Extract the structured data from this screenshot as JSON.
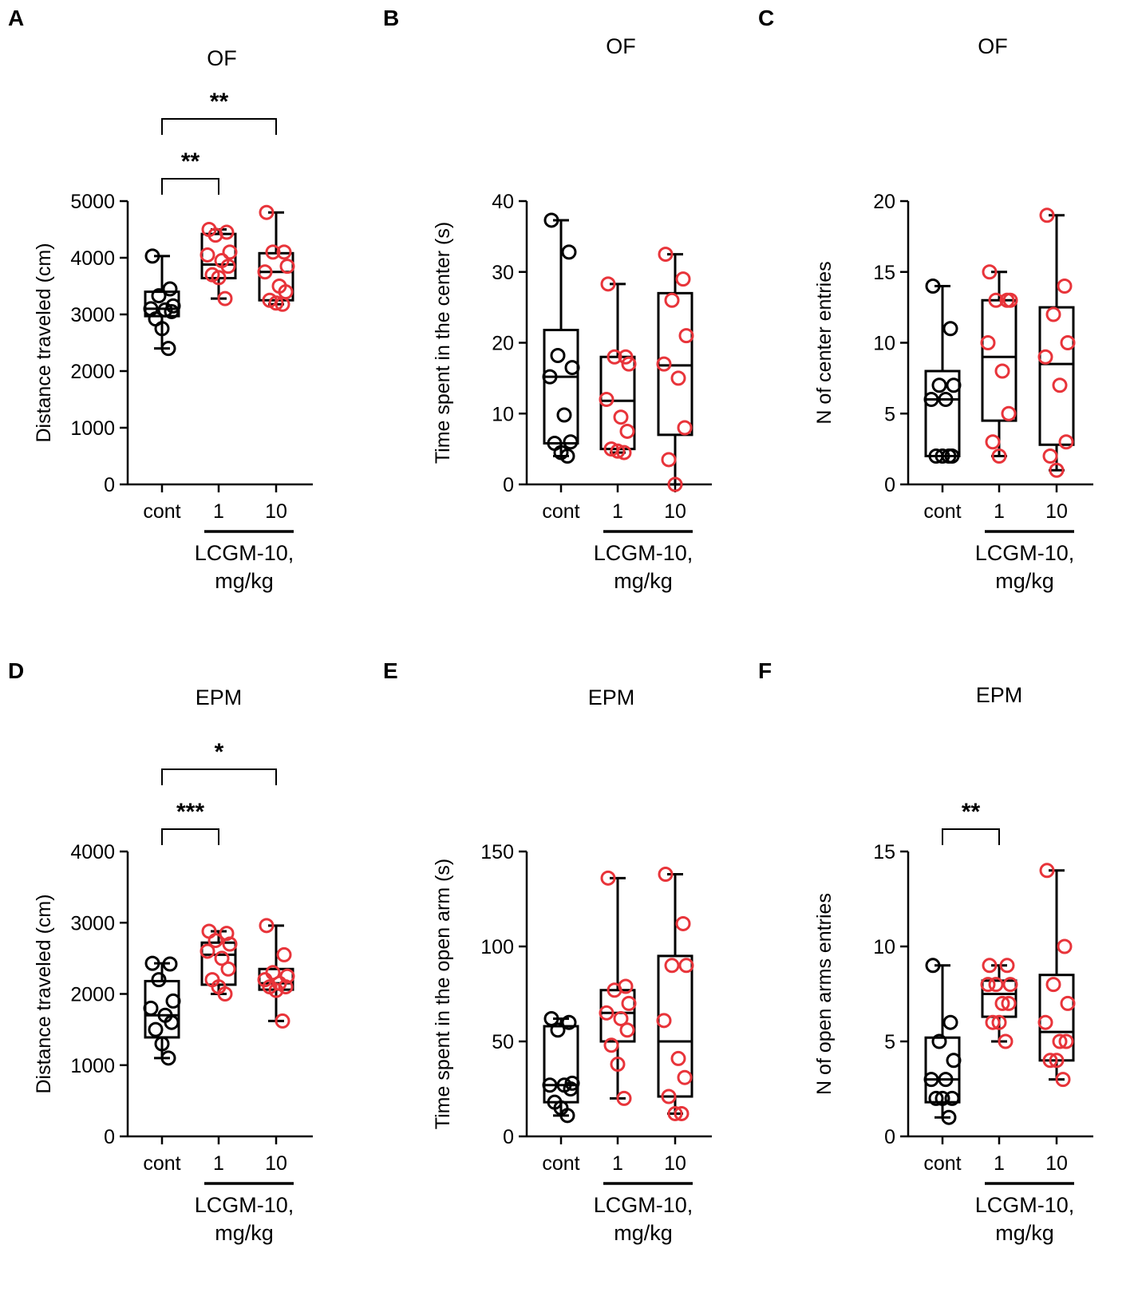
{
  "colors": {
    "control": "#000000",
    "treated": "#e8343a",
    "axis": "#000000"
  },
  "group_label_line1": "LCGM-10,",
  "group_label_line2": "mg/kg",
  "chart_data": [
    {
      "panel": "A",
      "title": "OF",
      "type": "box",
      "ylabel": "Distance traveled (cm)",
      "ylim": [
        0,
        5000
      ],
      "yticks": [
        "0",
        "1000",
        "2000",
        "3000",
        "4000",
        "5000"
      ],
      "categories": [
        "cont",
        "1",
        "10"
      ],
      "boxes": [
        {
          "min": 2400,
          "q1": 2970,
          "median": 3100,
          "q3": 3400,
          "max": 4030,
          "points": [
            4030,
            3450,
            3330,
            3150,
            3100,
            3080,
            3050,
            2920,
            2750,
            2400
          ]
        },
        {
          "min": 3280,
          "q1": 3640,
          "median": 3880,
          "q3": 4420,
          "max": 4500,
          "points": [
            4500,
            4450,
            4400,
            4100,
            4050,
            3950,
            3850,
            3700,
            3650,
            3280
          ]
        },
        {
          "min": 3180,
          "q1": 3250,
          "median": 3750,
          "q3": 4080,
          "max": 4800,
          "points": [
            4800,
            4100,
            4100,
            3850,
            3750,
            3500,
            3400,
            3250,
            3200,
            3180
          ]
        }
      ],
      "significance": [
        {
          "from": 0,
          "to": 1,
          "label": "**"
        },
        {
          "from": 0,
          "to": 2,
          "label": "**"
        }
      ]
    },
    {
      "panel": "B",
      "title": "OF",
      "type": "box",
      "ylabel": "Time spent in the center (s)",
      "ylim": [
        0,
        40
      ],
      "yticks": [
        "0",
        "10",
        "20",
        "30",
        "40"
      ],
      "categories": [
        "cont",
        "1",
        "10"
      ],
      "boxes": [
        {
          "min": 4,
          "q1": 5.8,
          "median": 15.2,
          "q3": 21.8,
          "max": 37.3,
          "points": [
            37.3,
            32.8,
            18.2,
            16.5,
            15.2,
            9.8,
            6,
            5.8,
            4.5,
            4
          ]
        },
        {
          "min": 4.5,
          "q1": 5,
          "median": 11.8,
          "q3": 18,
          "max": 28.3,
          "points": [
            28.3,
            18,
            18,
            17,
            12,
            9.5,
            7.5,
            5,
            4.7,
            4.5
          ]
        },
        {
          "min": 0,
          "q1": 7,
          "median": 16.8,
          "q3": 27,
          "max": 32.5,
          "points": [
            32.5,
            29,
            26,
            21,
            17,
            15,
            8,
            3.5,
            0
          ]
        }
      ],
      "significance": []
    },
    {
      "panel": "C",
      "title": "OF",
      "type": "box",
      "ylabel": "N of center entries",
      "ylim": [
        0,
        20
      ],
      "yticks": [
        "0",
        "5",
        "10",
        "15",
        "20"
      ],
      "categories": [
        "cont",
        "1",
        "10"
      ],
      "boxes": [
        {
          "min": 2,
          "q1": 2,
          "median": 6,
          "q3": 8,
          "max": 14,
          "points": [
            14,
            11,
            7,
            7,
            6,
            6,
            2,
            2,
            2,
            2
          ]
        },
        {
          "min": 2,
          "q1": 4.5,
          "median": 9,
          "q3": 13,
          "max": 15,
          "points": [
            15,
            13,
            13,
            13,
            10,
            8,
            5,
            3,
            2
          ]
        },
        {
          "min": 1,
          "q1": 2.8,
          "median": 8.5,
          "q3": 12.5,
          "max": 19,
          "points": [
            19,
            14,
            12,
            10,
            9,
            7,
            3,
            2,
            1
          ]
        }
      ],
      "significance": []
    },
    {
      "panel": "D",
      "title": "EPM",
      "type": "box",
      "ylabel": "Distance traveled (cm)",
      "ylim": [
        0,
        4000
      ],
      "yticks": [
        "0",
        "1000",
        "2000",
        "3000",
        "4000"
      ],
      "categories": [
        "cont",
        "1",
        "10"
      ],
      "boxes": [
        {
          "min": 1100,
          "q1": 1390,
          "median": 1700,
          "q3": 2180,
          "max": 2430,
          "points": [
            2430,
            2420,
            2200,
            1900,
            1800,
            1700,
            1600,
            1500,
            1300,
            1100
          ]
        },
        {
          "min": 2000,
          "q1": 2130,
          "median": 2550,
          "q3": 2720,
          "max": 2880,
          "points": [
            2880,
            2850,
            2750,
            2700,
            2600,
            2500,
            2350,
            2200,
            2100,
            2000
          ]
        },
        {
          "min": 1620,
          "q1": 2060,
          "median": 2150,
          "q3": 2350,
          "max": 2960,
          "points": [
            2960,
            2550,
            2300,
            2250,
            2200,
            2150,
            2100,
            2100,
            2050,
            1620
          ]
        }
      ],
      "significance": [
        {
          "from": 0,
          "to": 1,
          "label": "***"
        },
        {
          "from": 0,
          "to": 2,
          "label": "*"
        }
      ]
    },
    {
      "panel": "E",
      "title": "EPM",
      "type": "box",
      "ylabel": "Time spent in the open arm (s)",
      "ylim": [
        0,
        150
      ],
      "yticks": [
        "0",
        "50",
        "100",
        "150"
      ],
      "categories": [
        "cont",
        "1",
        "10"
      ],
      "boxes": [
        {
          "min": 11,
          "q1": 18,
          "median": 27,
          "q3": 58,
          "max": 62,
          "points": [
            62,
            60,
            56,
            28,
            27,
            27,
            25,
            18,
            15,
            11
          ]
        },
        {
          "min": 20,
          "q1": 50,
          "median": 65,
          "q3": 77,
          "max": 136,
          "points": [
            136,
            79,
            77,
            70,
            65,
            62,
            56,
            48,
            38,
            20
          ]
        },
        {
          "min": 12,
          "q1": 21,
          "median": 50,
          "q3": 95,
          "max": 138,
          "points": [
            138,
            112,
            90,
            90,
            61,
            41,
            31,
            21,
            12,
            12
          ]
        }
      ],
      "significance": []
    },
    {
      "panel": "F",
      "title": "EPM",
      "type": "box",
      "ylabel": "N of open arms entries",
      "ylim": [
        0,
        15
      ],
      "yticks": [
        "0",
        "5",
        "10",
        "15"
      ],
      "categories": [
        "cont",
        "1",
        "10"
      ],
      "boxes": [
        {
          "min": 1,
          "q1": 1.8,
          "median": 3,
          "q3": 5.2,
          "max": 9,
          "points": [
            9,
            6,
            5,
            4,
            3,
            3,
            2,
            2,
            2,
            1
          ]
        },
        {
          "min": 5,
          "q1": 6.3,
          "median": 7.5,
          "q3": 8.2,
          "max": 9,
          "points": [
            9,
            9,
            8,
            8,
            8,
            7,
            7,
            6,
            6,
            5
          ]
        },
        {
          "min": 3,
          "q1": 4,
          "median": 5.5,
          "q3": 8.5,
          "max": 14,
          "points": [
            14,
            10,
            8,
            7,
            6,
            5,
            5,
            4,
            4,
            3
          ]
        }
      ],
      "significance": [
        {
          "from": 0,
          "to": 1,
          "label": "**"
        }
      ]
    }
  ]
}
